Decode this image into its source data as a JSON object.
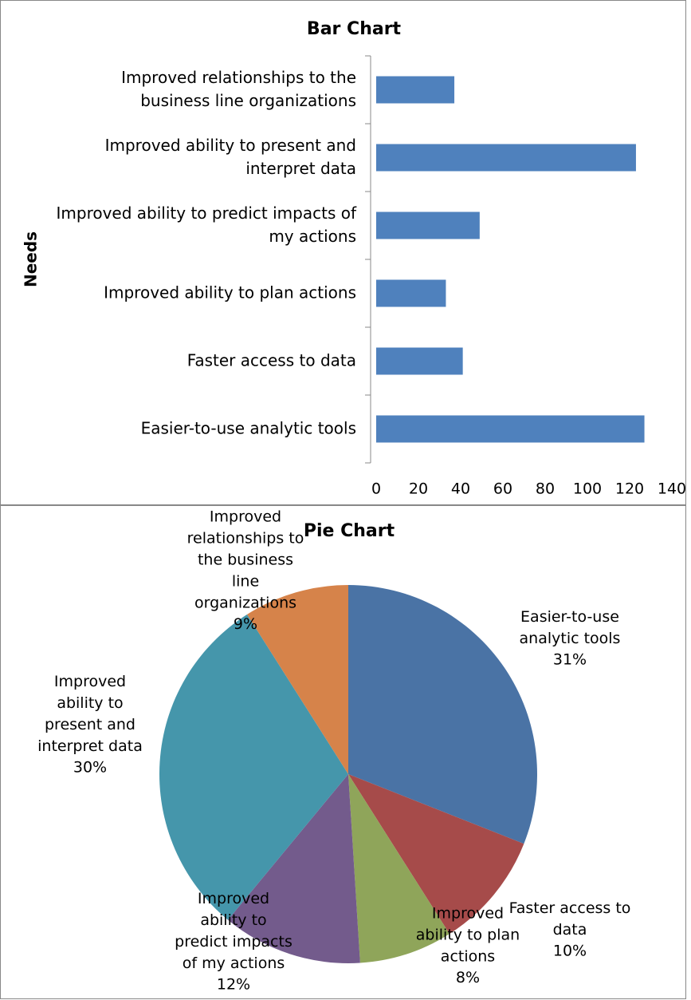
{
  "chart_data": [
    {
      "type": "bar",
      "title": "Bar Chart",
      "y_label": "Needs",
      "categories": [
        "Improved relationships to the business line organizations",
        "Improved ability to present and interpret data",
        "Improved ability to predict impacts of my actions",
        "Improved ability to plan actions",
        "Faster access to data",
        "Easier-to-use analytic tools"
      ],
      "values": [
        37,
        123,
        49,
        33,
        41,
        127
      ],
      "color": "#4f81bd",
      "xlim": [
        0,
        140
      ],
      "xticks": [
        0,
        20,
        40,
        60,
        80,
        100,
        120,
        140
      ]
    },
    {
      "type": "pie",
      "title": "Pie Chart",
      "categories": [
        "Easier-to-use analytic tools",
        "Faster access to data",
        "Improved ability to plan actions",
        "Improved ability to predict impacts of my actions",
        "Improved ability to present and interpret data",
        "Improved relationships to the business line organizations"
      ],
      "values": [
        31,
        10,
        8,
        12,
        30,
        9
      ],
      "value_labels": [
        "31%",
        "10%",
        "8%",
        "12%",
        "30%",
        "9%"
      ],
      "colors": [
        "#4a73a5",
        "#a64b4a",
        "#8fa55a",
        "#735b8c",
        "#4596ab",
        "#d6834a"
      ]
    }
  ]
}
